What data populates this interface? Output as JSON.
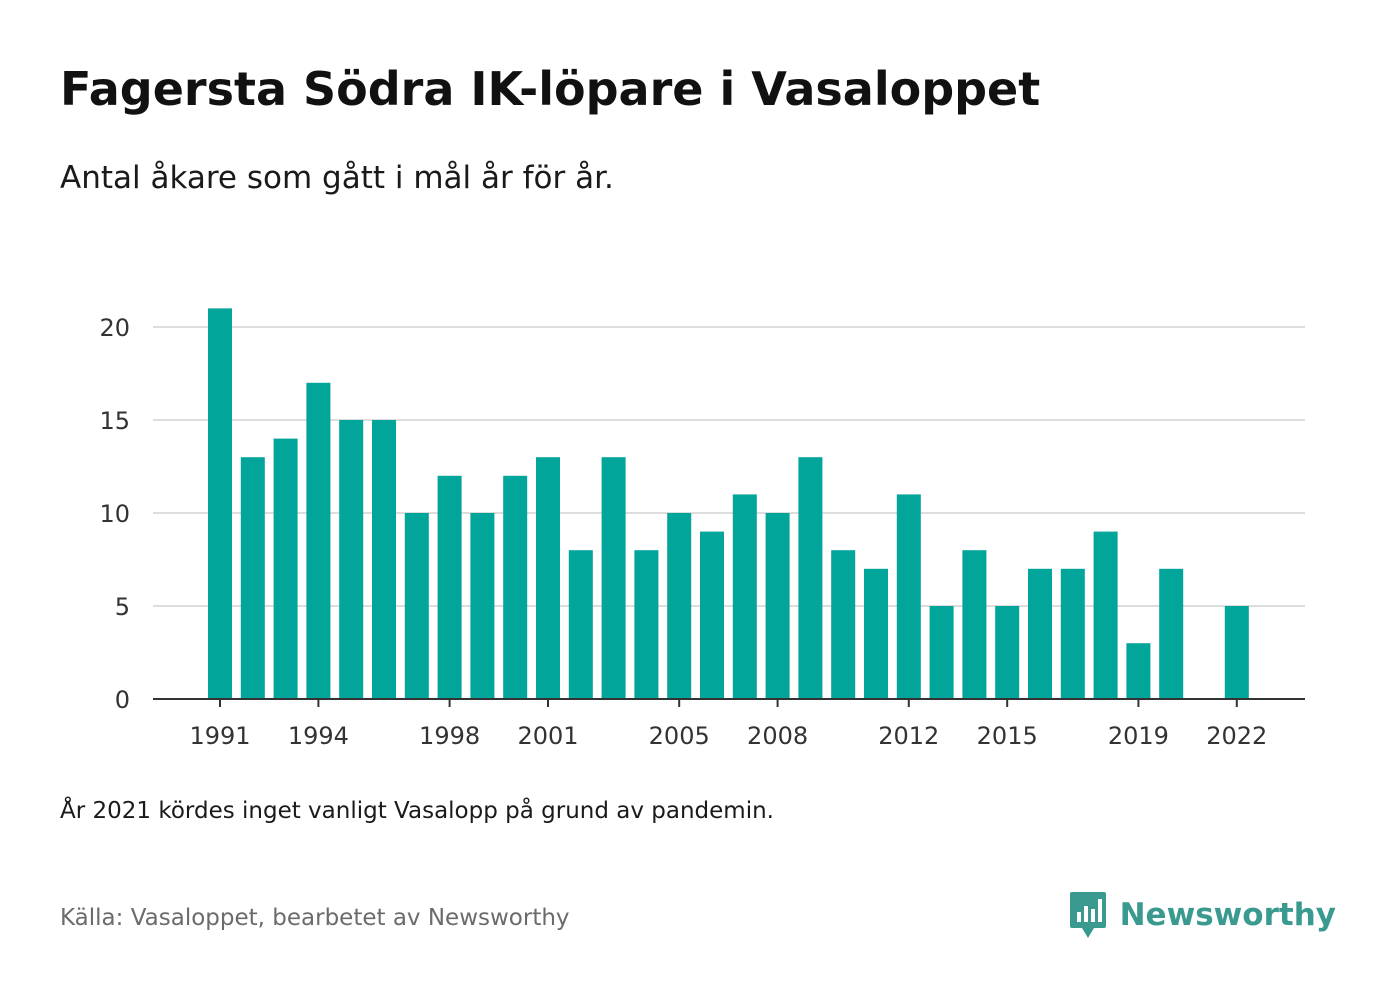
{
  "header": {
    "title": "Fagersta Södra IK-löpare i Vasaloppet",
    "subtitle": "Antal åkare som gått i mål år för år."
  },
  "footer": {
    "note": "År 2021 kördes inget vanligt Vasalopp på grund av pandemin.",
    "source": "Källa: Vasaloppet, bearbetet av Newsworthy",
    "brand": "Newsworthy"
  },
  "colors": {
    "bar": "#02a59a",
    "grid": "#dddddd",
    "axis": "#333333",
    "brand": "#3a9a8f"
  },
  "chart_data": {
    "type": "bar",
    "title": "Fagersta Södra IK-löpare i Vasaloppet",
    "subtitle": "Antal åkare som gått i mål år för år.",
    "xlabel": "",
    "ylabel": "",
    "ylim": [
      0,
      22
    ],
    "yticks": [
      0,
      5,
      10,
      15,
      20
    ],
    "grid": true,
    "legend": "none",
    "categories": [
      1991,
      1992,
      1993,
      1994,
      1995,
      1996,
      1997,
      1998,
      1999,
      2000,
      2001,
      2002,
      2003,
      2004,
      2005,
      2006,
      2007,
      2008,
      2009,
      2010,
      2011,
      2012,
      2013,
      2014,
      2015,
      2016,
      2017,
      2018,
      2019,
      2020,
      2021,
      2022
    ],
    "values": [
      21,
      13,
      14,
      17,
      15,
      15,
      10,
      12,
      10,
      12,
      13,
      8,
      13,
      8,
      10,
      9,
      11,
      10,
      13,
      8,
      7,
      11,
      5,
      8,
      5,
      7,
      7,
      9,
      3,
      7,
      null,
      5
    ],
    "xtick_labels": [
      "1991",
      "1994",
      "1998",
      "2001",
      "2005",
      "2008",
      "2012",
      "2015",
      "2019",
      "2022"
    ]
  }
}
